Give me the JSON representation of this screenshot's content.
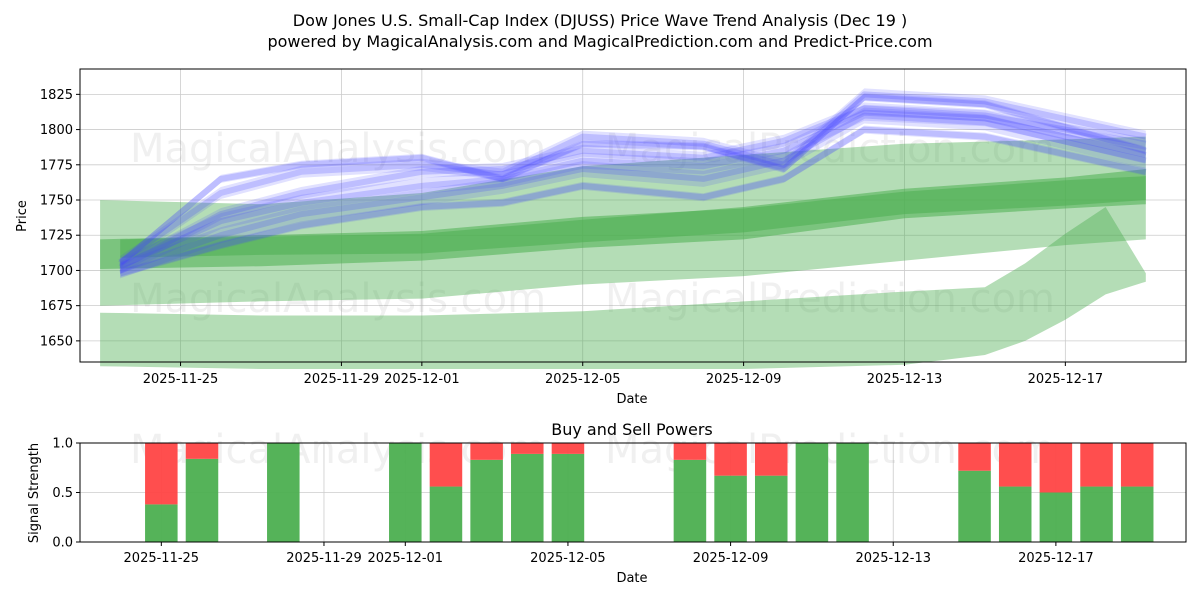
{
  "title_line1": "Dow Jones U.S. Small-Cap Index (DJUSS) Price Wave Trend Analysis (Dec 19 )",
  "title_line2": "powered by MagicalAnalysis.com and MagicalPrediction.com and Predict-Price.com",
  "watermarks": [
    "MagicalAnalysis.com",
    "MagicalPrediction.com"
  ],
  "colors": {
    "blue": "#4444ff",
    "green": "#4caf50",
    "red": "#ff4444",
    "grid": "#cccccc"
  },
  "chart_data": [
    {
      "type": "area",
      "title": "",
      "xlabel": "Date",
      "ylabel": "Price",
      "x_range": [
        "2025-11-22T12:00",
        "2025-12-20T00:00"
      ],
      "ylim": [
        1635,
        1843
      ],
      "yticks": [
        1650,
        1675,
        1700,
        1725,
        1750,
        1775,
        1800,
        1825
      ],
      "xticks": [
        {
          "date": "2025-11-25",
          "label": "2025-11-25"
        },
        {
          "date": "2025-11-29",
          "label": "2025-11-29"
        },
        {
          "date": "2025-12-01",
          "label": "2025-12-01"
        },
        {
          "date": "2025-12-05",
          "label": "2025-12-05"
        },
        {
          "date": "2025-12-09",
          "label": "2025-12-09"
        },
        {
          "date": "2025-12-13",
          "label": "2025-12-13"
        },
        {
          "date": "2025-12-17",
          "label": "2025-12-17"
        }
      ],
      "green_bands": [
        {
          "name": "upper-band",
          "dates": [
            "2025-11-23",
            "2025-11-27",
            "2025-12-01",
            "2025-12-05",
            "2025-12-09",
            "2025-12-13",
            "2025-12-17",
            "2025-12-19"
          ],
          "upper": [
            1750,
            1747,
            1755,
            1774,
            1782,
            1790,
            1793,
            1795
          ],
          "lower": [
            1675,
            1678,
            1680,
            1690,
            1696,
            1707,
            1718,
            1722
          ]
        },
        {
          "name": "lower-band",
          "dates": [
            "2025-11-23",
            "2025-11-27",
            "2025-12-01",
            "2025-12-05",
            "2025-12-09",
            "2025-12-13",
            "2025-12-15",
            "2025-12-16",
            "2025-12-17",
            "2025-12-18",
            "2025-12-19"
          ],
          "upper": [
            1670,
            1668,
            1668,
            1671,
            1678,
            1685,
            1688,
            1705,
            1726,
            1745,
            1698
          ],
          "lower": [
            1632,
            1630,
            1630,
            1630,
            1630,
            1633,
            1640,
            1650,
            1665,
            1683,
            1692
          ]
        },
        {
          "name": "thick-trend-1",
          "dates": [
            "2025-11-23",
            "2025-11-27",
            "2025-12-01",
            "2025-12-05",
            "2025-12-09",
            "2025-12-13",
            "2025-12-17",
            "2025-12-19"
          ],
          "upper": [
            1722,
            1725,
            1728,
            1738,
            1744,
            1756,
            1764,
            1767
          ],
          "lower": [
            1701,
            1703,
            1707,
            1716,
            1722,
            1737,
            1744,
            1747
          ]
        },
        {
          "name": "thick-trend-2",
          "dates": [
            "2025-11-23.5",
            "2025-11-27",
            "2025-12-01",
            "2025-12-05",
            "2025-12-09",
            "2025-12-13",
            "2025-12-17",
            "2025-12-19"
          ],
          "upper": [
            1722,
            1724,
            1726,
            1736,
            1745,
            1758,
            1766,
            1772
          ],
          "lower": [
            1709,
            1711,
            1712,
            1720,
            1727,
            1740,
            1746,
            1750
          ]
        }
      ],
      "blue_waves": [
        {
          "dates": [
            "2025-11-23.5",
            "2025-11-26",
            "2025-11-28",
            "2025-12-01",
            "2025-12-03",
            "2025-12-05",
            "2025-12-08",
            "2025-12-10",
            "2025-12-12",
            "2025-12-15",
            "2025-12-19"
          ],
          "values": [
            1705,
            1765,
            1775,
            1780,
            1765,
            1790,
            1788,
            1772,
            1823,
            1818,
            1785
          ]
        },
        {
          "dates": [
            "2025-11-23.5",
            "2025-11-26",
            "2025-11-28",
            "2025-12-01",
            "2025-12-03",
            "2025-12-05",
            "2025-12-08",
            "2025-12-10",
            "2025-12-12",
            "2025-12-15",
            "2025-12-19"
          ],
          "values": [
            1702,
            1740,
            1755,
            1770,
            1772,
            1785,
            1780,
            1792,
            1815,
            1810,
            1790
          ]
        },
        {
          "dates": [
            "2025-11-23.5",
            "2025-11-26",
            "2025-11-28",
            "2025-12-01",
            "2025-12-03",
            "2025-12-05",
            "2025-12-08",
            "2025-12-10",
            "2025-12-12",
            "2025-12-15",
            "2025-12-19"
          ],
          "values": [
            1700,
            1725,
            1740,
            1752,
            1760,
            1772,
            1765,
            1778,
            1810,
            1805,
            1778
          ]
        },
        {
          "dates": [
            "2025-11-23.5",
            "2025-11-26",
            "2025-11-28",
            "2025-12-01",
            "2025-12-03",
            "2025-12-05",
            "2025-12-08",
            "2025-12-10",
            "2025-12-12",
            "2025-12-15",
            "2025-12-19"
          ],
          "values": [
            1698,
            1718,
            1732,
            1745,
            1748,
            1760,
            1752,
            1765,
            1800,
            1795,
            1770
          ]
        },
        {
          "dates": [
            "2025-11-23.5",
            "2025-11-26",
            "2025-11-28",
            "2025-12-01",
            "2025-12-03",
            "2025-12-05",
            "2025-12-08",
            "2025-12-10",
            "2025-12-12",
            "2025-12-15",
            "2025-12-19"
          ],
          "values": [
            1706,
            1755,
            1770,
            1775,
            1768,
            1795,
            1790,
            1775,
            1825,
            1820,
            1795
          ]
        },
        {
          "dates": [
            "2025-11-23.5",
            "2025-11-26",
            "2025-11-28",
            "2025-12-01",
            "2025-12-03",
            "2025-12-05",
            "2025-12-08",
            "2025-12-10",
            "2025-12-12",
            "2025-12-15",
            "2025-12-19"
          ],
          "values": [
            1703,
            1735,
            1748,
            1760,
            1765,
            1778,
            1774,
            1785,
            1812,
            1808,
            1782
          ]
        }
      ]
    },
    {
      "type": "bar",
      "title": "Buy and Sell Powers",
      "xlabel": "Date",
      "ylabel": "Signal Strength",
      "ylim": [
        0,
        1
      ],
      "yticks": [
        0.0,
        0.5,
        1.0
      ],
      "ytick_labels": [
        "0.0",
        "0.5",
        "1.0"
      ],
      "xticks": [
        {
          "date": "2025-11-25",
          "label": "2025-11-25"
        },
        {
          "date": "2025-11-29",
          "label": "2025-11-29"
        },
        {
          "date": "2025-12-01",
          "label": "2025-12-01"
        },
        {
          "date": "2025-12-05",
          "label": "2025-12-05"
        },
        {
          "date": "2025-12-09",
          "label": "2025-12-09"
        },
        {
          "date": "2025-12-13",
          "label": "2025-12-13"
        },
        {
          "date": "2025-12-17",
          "label": "2025-12-17"
        }
      ],
      "series": [
        {
          "name": "Buy",
          "color": "green"
        },
        {
          "name": "Sell",
          "color": "red"
        }
      ],
      "bars": [
        {
          "date": "2025-11-25",
          "buy": 0.38,
          "sell": 0.62
        },
        {
          "date": "2025-11-26",
          "buy": 0.84,
          "sell": 0.16
        },
        {
          "date": "2025-11-28",
          "buy": 1.0,
          "sell": 0.0
        },
        {
          "date": "2025-12-01",
          "buy": 1.0,
          "sell": 0.0
        },
        {
          "date": "2025-12-02",
          "buy": 0.56,
          "sell": 0.44
        },
        {
          "date": "2025-12-03",
          "buy": 0.83,
          "sell": 0.17
        },
        {
          "date": "2025-12-04",
          "buy": 0.89,
          "sell": 0.11
        },
        {
          "date": "2025-12-05",
          "buy": 0.89,
          "sell": 0.11
        },
        {
          "date": "2025-12-08",
          "buy": 0.83,
          "sell": 0.17
        },
        {
          "date": "2025-12-09",
          "buy": 0.67,
          "sell": 0.33
        },
        {
          "date": "2025-12-10",
          "buy": 0.67,
          "sell": 0.33
        },
        {
          "date": "2025-12-11",
          "buy": 1.0,
          "sell": 0.0
        },
        {
          "date": "2025-12-12",
          "buy": 1.0,
          "sell": 0.0
        },
        {
          "date": "2025-12-15",
          "buy": 0.72,
          "sell": 0.28
        },
        {
          "date": "2025-12-16",
          "buy": 0.56,
          "sell": 0.44
        },
        {
          "date": "2025-12-17",
          "buy": 0.5,
          "sell": 0.5
        },
        {
          "date": "2025-12-18",
          "buy": 0.56,
          "sell": 0.44
        },
        {
          "date": "2025-12-19",
          "buy": 0.56,
          "sell": 0.44
        }
      ]
    }
  ]
}
